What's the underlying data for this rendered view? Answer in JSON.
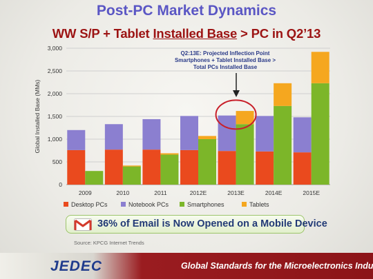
{
  "slide": {
    "title": "Post-PC Market Dynamics",
    "subtitle_pre": "WW S/P + Tablet ",
    "subtitle_underlined": "Installed Base",
    "subtitle_post": " > PC in Q2’13"
  },
  "annotation": {
    "lines": [
      "Q2:13E: Projected Inflection Point",
      "Smartphones + Tablet Installed Base >",
      "Total PCs Installed Base"
    ],
    "highlight_color": "#c8202a"
  },
  "email_banner": {
    "text": "36% of Email is Now Opened on a Mobile Device",
    "icon": "gmail-icon"
  },
  "source": "Source: KPCG Internet Trends",
  "footer": {
    "logo": "JEDEC",
    "tagline": "Global Standards for the Microelectronics Industry"
  },
  "chart_data": {
    "type": "bar",
    "ylabel": "Global Installed Base (MMs)",
    "ylim": [
      0,
      3000
    ],
    "yticks": [
      "0",
      "500",
      "1,000",
      "1,500",
      "2,000",
      "2,500",
      "3,000"
    ],
    "ytick_values": [
      0,
      500,
      1000,
      1500,
      2000,
      2500,
      3000
    ],
    "grid": true,
    "legend_position": "bottom",
    "categories": [
      "2009",
      "2010",
      "2011",
      "2012E",
      "2013E",
      "2014E",
      "2015E"
    ],
    "stacks": [
      {
        "name": "PC stack",
        "series": [
          {
            "name": "Desktop PCs",
            "color": "#ea4a1e",
            "values": [
              760,
              770,
              770,
              760,
              740,
              730,
              710
            ]
          },
          {
            "name": "Notebook PCs",
            "color": "#8b7fd0",
            "values": [
              440,
              560,
              670,
              750,
              780,
              780,
              770
            ]
          }
        ]
      },
      {
        "name": "Mobile stack",
        "series": [
          {
            "name": "Smartphones",
            "color": "#7cb629",
            "values": [
              300,
              400,
              660,
              1000,
              1330,
              1730,
              2230
            ]
          },
          {
            "name": "Tablets",
            "color": "#f5a71f",
            "values": [
              0,
              20,
              30,
              70,
              290,
              500,
              690
            ]
          }
        ]
      }
    ],
    "legend": [
      {
        "name": "Desktop PCs",
        "color": "#ea4a1e"
      },
      {
        "name": "Notebook PCs",
        "color": "#8b7fd0"
      },
      {
        "name": "Smartphones",
        "color": "#7cb629"
      },
      {
        "name": "Tablets",
        "color": "#f5a71f"
      }
    ]
  }
}
